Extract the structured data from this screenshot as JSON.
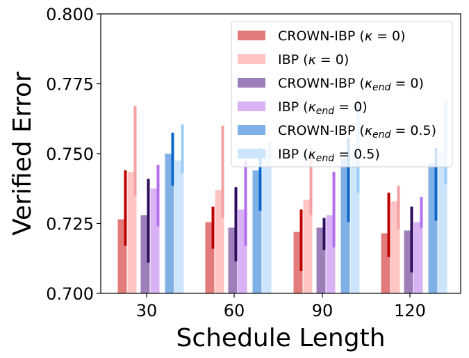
{
  "chart_data": {
    "type": "bar",
    "title": "",
    "xlabel": "Schedule Length",
    "ylabel": "Verified Error",
    "ylim": [
      0.7,
      0.8
    ],
    "yticks": [
      "0.700",
      "0.725",
      "0.750",
      "0.775",
      "0.800"
    ],
    "ytick_values": [
      0.7,
      0.725,
      0.75,
      0.775,
      0.8
    ],
    "categories": [
      "30",
      "60",
      "90",
      "120"
    ],
    "legend_position": "top-right",
    "grid": false,
    "series": [
      {
        "name": "CROWN-IBP (κ = 0)",
        "legend_main": "CROWN-IBP (",
        "legend_sym": "κ",
        "legend_sub": "",
        "legend_rest": " = 0)",
        "color": "#e37b7b",
        "error_color": "#c00000",
        "values": [
          0.7265,
          0.7255,
          0.722,
          0.7215
        ],
        "err_low": [
          0.717,
          0.716,
          0.708,
          0.713
        ],
        "err_high": [
          0.744,
          0.731,
          0.73,
          0.736
        ]
      },
      {
        "name": "IBP (κ = 0)",
        "legend_main": "IBP (",
        "legend_sym": "κ",
        "legend_sub": "",
        "legend_rest": " = 0)",
        "color": "#ffc4c4",
        "error_color": "#f4a0a0",
        "values": [
          0.7435,
          0.737,
          0.7335,
          0.733
        ],
        "err_low": [
          0.735,
          0.727,
          0.728,
          0.723
        ],
        "err_high": [
          0.767,
          0.76,
          0.752,
          0.7385
        ]
      },
      {
        "name": "CROWN-IBP (κend = 0)",
        "legend_main": "CROWN-IBP (",
        "legend_sym": "κ",
        "legend_sub": "end",
        "legend_rest": " = 0)",
        "color": "#9c7fb8",
        "error_color": "#2c0d5e",
        "values": [
          0.728,
          0.7235,
          0.7235,
          0.7225
        ],
        "err_low": [
          0.711,
          0.7115,
          0.7155,
          0.7075
        ],
        "err_high": [
          0.741,
          0.738,
          0.727,
          0.731
        ]
      },
      {
        "name": "IBP (κend = 0)",
        "legend_main": "IBP (",
        "legend_sym": "κ",
        "legend_sub": "end",
        "legend_rest": " = 0)",
        "color": "#d8b2f5",
        "error_color": "#b36ff0",
        "values": [
          0.7375,
          0.73,
          0.728,
          0.7255
        ],
        "err_low": [
          0.724,
          0.717,
          0.7165,
          0.7235
        ],
        "err_high": [
          0.746,
          0.7475,
          0.7435,
          0.7345
        ]
      },
      {
        "name": "CROWN-IBP (κend = 0.5)",
        "legend_main": "CROWN-IBP (",
        "legend_sym": "κ",
        "legend_sub": "end",
        "legend_rest": " = 0.5)",
        "color": "#7fb1e6",
        "error_color": "#0a66cc",
        "values": [
          0.75,
          0.744,
          0.7485,
          0.7465
        ],
        "err_low": [
          0.7385,
          0.7295,
          0.7255,
          0.726
        ],
        "err_high": [
          0.7575,
          0.752,
          0.7555,
          0.752
        ]
      },
      {
        "name": "IBP (κend = 0.5)",
        "legend_main": "IBP (",
        "legend_sym": "κ",
        "legend_sub": "end",
        "legend_rest": " = 0.5)",
        "color": "#cde4fd",
        "error_color": "#9acdf6",
        "values": [
          0.7475,
          0.7515,
          0.7515,
          0.751
        ],
        "err_low": [
          0.743,
          0.748,
          0.736,
          0.739
        ],
        "err_high": [
          0.7605,
          0.754,
          0.77,
          0.769
        ]
      }
    ]
  }
}
